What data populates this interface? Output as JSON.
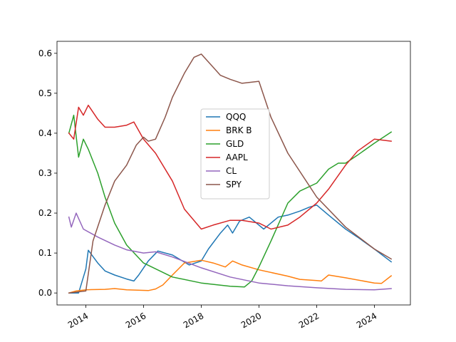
{
  "chart_data": {
    "type": "line",
    "title": "",
    "xlabel": "",
    "ylabel": "",
    "x_axis": {
      "kind": "date",
      "range": [
        "2013-01-01",
        "2025-04-01"
      ],
      "ticks": [
        {
          "date": "2014-01-01",
          "label": "2014"
        },
        {
          "date": "2016-01-01",
          "label": "2016"
        },
        {
          "date": "2018-01-01",
          "label": "2018"
        },
        {
          "date": "2020-01-01",
          "label": "2020"
        },
        {
          "date": "2022-01-01",
          "label": "2022"
        },
        {
          "date": "2024-01-01",
          "label": "2024"
        }
      ]
    },
    "y_axis": {
      "range": [
        -0.03,
        0.63
      ],
      "ticks": [
        {
          "value": 0.0,
          "label": "0.0"
        },
        {
          "value": 0.1,
          "label": "0.1"
        },
        {
          "value": 0.2,
          "label": "0.2"
        },
        {
          "value": 0.3,
          "label": "0.3"
        },
        {
          "value": 0.4,
          "label": "0.4"
        },
        {
          "value": 0.5,
          "label": "0.5"
        },
        {
          "value": 0.6,
          "label": "0.6"
        }
      ]
    },
    "grid": false,
    "legend": {
      "placement": "center"
    },
    "series": [
      {
        "name": "QQQ",
        "color": "#1f77b4",
        "points": [
          [
            "2013-06-01",
            0.0
          ],
          [
            "2013-10-01",
            0.0
          ],
          [
            "2014-01-01",
            0.06
          ],
          [
            "2014-02-01",
            0.107
          ],
          [
            "2014-06-01",
            0.075
          ],
          [
            "2014-09-01",
            0.055
          ],
          [
            "2015-01-01",
            0.045
          ],
          [
            "2015-06-01",
            0.035
          ],
          [
            "2015-09-01",
            0.03
          ],
          [
            "2015-11-01",
            0.045
          ],
          [
            "2016-03-01",
            0.08
          ],
          [
            "2016-07-01",
            0.105
          ],
          [
            "2017-01-01",
            0.095
          ],
          [
            "2017-08-01",
            0.07
          ],
          [
            "2018-01-01",
            0.08
          ],
          [
            "2018-04-01",
            0.11
          ],
          [
            "2018-09-01",
            0.15
          ],
          [
            "2018-12-01",
            0.17
          ],
          [
            "2019-02-01",
            0.15
          ],
          [
            "2019-05-01",
            0.18
          ],
          [
            "2019-09-01",
            0.19
          ],
          [
            "2020-03-01",
            0.16
          ],
          [
            "2020-06-01",
            0.175
          ],
          [
            "2020-09-01",
            0.19
          ],
          [
            "2021-01-01",
            0.195
          ],
          [
            "2021-06-01",
            0.205
          ],
          [
            "2021-10-01",
            0.215
          ],
          [
            "2022-01-01",
            0.22
          ],
          [
            "2022-06-01",
            0.195
          ],
          [
            "2023-01-01",
            0.16
          ],
          [
            "2023-06-01",
            0.14
          ],
          [
            "2024-01-01",
            0.11
          ],
          [
            "2024-08-01",
            0.078
          ]
        ]
      },
      {
        "name": "BRK B",
        "color": "#ff7f0e",
        "points": [
          [
            "2013-06-01",
            0.0
          ],
          [
            "2013-09-01",
            0.005
          ],
          [
            "2014-01-01",
            0.008
          ],
          [
            "2014-09-01",
            0.009
          ],
          [
            "2015-01-01",
            0.011
          ],
          [
            "2015-06-01",
            0.008
          ],
          [
            "2016-03-01",
            0.006
          ],
          [
            "2016-06-01",
            0.01
          ],
          [
            "2016-09-01",
            0.02
          ],
          [
            "2017-01-01",
            0.045
          ],
          [
            "2017-06-01",
            0.075
          ],
          [
            "2018-01-01",
            0.082
          ],
          [
            "2018-06-01",
            0.075
          ],
          [
            "2018-11-01",
            0.065
          ],
          [
            "2019-02-01",
            0.08
          ],
          [
            "2019-06-01",
            0.07
          ],
          [
            "2020-01-01",
            0.058
          ],
          [
            "2021-01-01",
            0.042
          ],
          [
            "2021-06-01",
            0.034
          ],
          [
            "2022-01-01",
            0.031
          ],
          [
            "2022-03-01",
            0.03
          ],
          [
            "2022-06-01",
            0.045
          ],
          [
            "2023-01-01",
            0.038
          ],
          [
            "2024-01-01",
            0.025
          ],
          [
            "2024-04-01",
            0.024
          ],
          [
            "2024-08-01",
            0.043
          ]
        ]
      },
      {
        "name": "GLD",
        "color": "#2ca02c",
        "points": [
          [
            "2013-06-01",
            0.4
          ],
          [
            "2013-08-01",
            0.445
          ],
          [
            "2013-10-01",
            0.34
          ],
          [
            "2013-12-01",
            0.385
          ],
          [
            "2014-02-01",
            0.36
          ],
          [
            "2014-06-01",
            0.3
          ],
          [
            "2014-09-01",
            0.24
          ],
          [
            "2015-01-01",
            0.175
          ],
          [
            "2015-06-01",
            0.12
          ],
          [
            "2016-01-01",
            0.075
          ],
          [
            "2017-01-01",
            0.04
          ],
          [
            "2018-01-01",
            0.025
          ],
          [
            "2019-01-01",
            0.017
          ],
          [
            "2019-07-01",
            0.015
          ],
          [
            "2019-10-01",
            0.03
          ],
          [
            "2020-01-01",
            0.065
          ],
          [
            "2020-06-01",
            0.13
          ],
          [
            "2021-01-01",
            0.225
          ],
          [
            "2021-06-01",
            0.255
          ],
          [
            "2022-01-01",
            0.275
          ],
          [
            "2022-06-01",
            0.31
          ],
          [
            "2022-10-01",
            0.325
          ],
          [
            "2023-01-01",
            0.325
          ],
          [
            "2023-06-01",
            0.345
          ],
          [
            "2024-01-01",
            0.375
          ],
          [
            "2024-08-01",
            0.403
          ]
        ]
      },
      {
        "name": "AAPL",
        "color": "#d62728",
        "points": [
          [
            "2013-06-01",
            0.4
          ],
          [
            "2013-08-01",
            0.385
          ],
          [
            "2013-10-01",
            0.465
          ],
          [
            "2013-12-01",
            0.445
          ],
          [
            "2014-02-01",
            0.47
          ],
          [
            "2014-06-01",
            0.435
          ],
          [
            "2014-09-01",
            0.415
          ],
          [
            "2015-01-01",
            0.415
          ],
          [
            "2015-06-01",
            0.42
          ],
          [
            "2015-09-01",
            0.428
          ],
          [
            "2016-01-01",
            0.385
          ],
          [
            "2016-06-01",
            0.35
          ],
          [
            "2017-01-01",
            0.28
          ],
          [
            "2017-06-01",
            0.21
          ],
          [
            "2018-01-01",
            0.16
          ],
          [
            "2018-06-01",
            0.17
          ],
          [
            "2019-01-01",
            0.182
          ],
          [
            "2019-06-01",
            0.182
          ],
          [
            "2020-01-01",
            0.175
          ],
          [
            "2020-06-01",
            0.16
          ],
          [
            "2021-01-01",
            0.17
          ],
          [
            "2021-06-01",
            0.19
          ],
          [
            "2022-01-01",
            0.225
          ],
          [
            "2022-06-01",
            0.26
          ],
          [
            "2023-01-01",
            0.32
          ],
          [
            "2023-06-01",
            0.355
          ],
          [
            "2024-01-01",
            0.385
          ],
          [
            "2024-08-01",
            0.38
          ]
        ]
      },
      {
        "name": "CL",
        "color": "#9467bd",
        "points": [
          [
            "2013-06-01",
            0.19
          ],
          [
            "2013-07-01",
            0.165
          ],
          [
            "2013-09-01",
            0.2
          ],
          [
            "2013-12-01",
            0.16
          ],
          [
            "2014-06-01",
            0.14
          ],
          [
            "2015-01-01",
            0.12
          ],
          [
            "2015-06-01",
            0.108
          ],
          [
            "2016-01-01",
            0.1
          ],
          [
            "2016-06-01",
            0.103
          ],
          [
            "2017-01-01",
            0.09
          ],
          [
            "2018-01-01",
            0.063
          ],
          [
            "2019-01-01",
            0.04
          ],
          [
            "2020-01-01",
            0.025
          ],
          [
            "2021-01-01",
            0.018
          ],
          [
            "2022-01-01",
            0.013
          ],
          [
            "2023-01-01",
            0.009
          ],
          [
            "2024-01-01",
            0.008
          ],
          [
            "2024-08-01",
            0.011
          ]
        ]
      },
      {
        "name": "SPY",
        "color": "#8c564b",
        "points": [
          [
            "2013-06-01",
            0.0
          ],
          [
            "2014-01-01",
            0.005
          ],
          [
            "2014-04-01",
            0.13
          ],
          [
            "2014-09-01",
            0.22
          ],
          [
            "2015-01-01",
            0.28
          ],
          [
            "2015-06-01",
            0.32
          ],
          [
            "2015-10-01",
            0.37
          ],
          [
            "2016-01-01",
            0.39
          ],
          [
            "2016-03-01",
            0.38
          ],
          [
            "2016-06-01",
            0.385
          ],
          [
            "2016-10-01",
            0.44
          ],
          [
            "2017-01-01",
            0.49
          ],
          [
            "2017-06-01",
            0.55
          ],
          [
            "2017-10-01",
            0.59
          ],
          [
            "2018-01-01",
            0.598
          ],
          [
            "2018-06-01",
            0.565
          ],
          [
            "2018-09-01",
            0.545
          ],
          [
            "2019-01-01",
            0.535
          ],
          [
            "2019-06-01",
            0.525
          ],
          [
            "2020-01-01",
            0.53
          ],
          [
            "2020-06-01",
            0.44
          ],
          [
            "2021-01-01",
            0.35
          ],
          [
            "2022-01-01",
            0.24
          ],
          [
            "2023-01-01",
            0.165
          ],
          [
            "2024-01-01",
            0.11
          ],
          [
            "2024-08-01",
            0.085
          ]
        ]
      }
    ]
  }
}
